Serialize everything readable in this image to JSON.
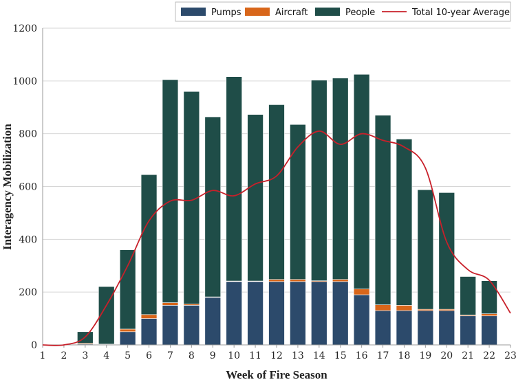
{
  "chart_data": {
    "type": "bar",
    "stacked": true,
    "x": [
      3,
      4,
      5,
      6,
      7,
      8,
      9,
      10,
      11,
      12,
      13,
      14,
      15,
      16,
      17,
      18,
      19,
      20,
      21,
      22
    ],
    "series": [
      {
        "name": "Pumps",
        "color": "#2c4a6b",
        "values": [
          3,
          2,
          50,
          100,
          150,
          150,
          180,
          240,
          240,
          240,
          240,
          240,
          240,
          190,
          130,
          130,
          130,
          130,
          110,
          110
        ]
      },
      {
        "name": "Aircraft",
        "color": "#d8661a",
        "values": [
          3,
          1,
          10,
          15,
          10,
          5,
          2,
          2,
          2,
          8,
          8,
          3,
          8,
          22,
          22,
          20,
          5,
          5,
          3,
          8
        ]
      },
      {
        "name": "People",
        "color": "#1f4d48",
        "values": [
          44,
          218,
          300,
          530,
          845,
          805,
          682,
          774,
          631,
          662,
          587,
          760,
          763,
          813,
          718,
          630,
          453,
          442,
          146,
          125
        ]
      }
    ],
    "line": {
      "name": "Total 10-year Average",
      "color": "#c8202a",
      "x": [
        1,
        2,
        3,
        4,
        5,
        6,
        7,
        8,
        9,
        10,
        11,
        12,
        13,
        14,
        15,
        16,
        17,
        18,
        19,
        20,
        21,
        22,
        23
      ],
      "values": [
        0,
        0,
        30,
        150,
        300,
        470,
        545,
        548,
        585,
        565,
        610,
        640,
        750,
        810,
        760,
        800,
        775,
        750,
        670,
        390,
        285,
        245,
        120
      ]
    },
    "xlabel": "Week of Fire Season",
    "ylabel": "Interagency Mobilization",
    "xticks": [
      "1",
      "2",
      "3",
      "4",
      "5",
      "6",
      "7",
      "8",
      "9",
      "10",
      "11",
      "12",
      "13",
      "14",
      "15",
      "16",
      "17",
      "18",
      "19",
      "20",
      "21",
      "22",
      "23"
    ],
    "yticks": [
      "0",
      "200",
      "400",
      "600",
      "800",
      "1000",
      "1200"
    ],
    "ylim": [
      0,
      1200
    ],
    "xlim": [
      1,
      23
    ],
    "grid": true,
    "legend_position": "top-right"
  }
}
